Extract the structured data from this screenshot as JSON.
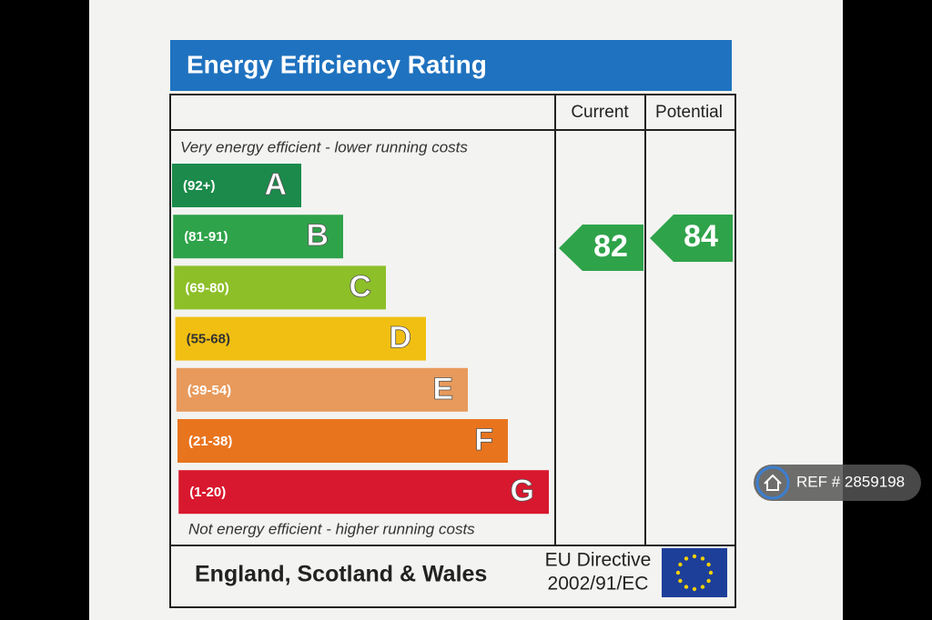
{
  "title": "Energy Efficiency Rating",
  "columns": [
    "Current",
    "Potential"
  ],
  "top_note": "Very energy efficient - lower running costs",
  "bottom_note": "Not energy efficient - higher running costs",
  "bands": [
    {
      "range": "(92+)",
      "letter": "A",
      "color": "#1b8a4b"
    },
    {
      "range": "(81-91)",
      "letter": "B",
      "color": "#2fa34a"
    },
    {
      "range": "(69-80)",
      "letter": "C",
      "color": "#8dbf28"
    },
    {
      "range": "(55-68)",
      "letter": "D",
      "color": "#f1bf12"
    },
    {
      "range": "(39-54)",
      "letter": "E",
      "color": "#e89a5c"
    },
    {
      "range": "(21-38)",
      "letter": "F",
      "color": "#e8741e"
    },
    {
      "range": "(1-20)",
      "letter": "G",
      "color": "#d8182e"
    }
  ],
  "current": 82,
  "potential": 84,
  "footer": {
    "region": "England, Scotland & Wales",
    "directive": "EU Directive",
    "code": "2002/91/EC"
  },
  "ref_badge": "REF # 2859198"
}
